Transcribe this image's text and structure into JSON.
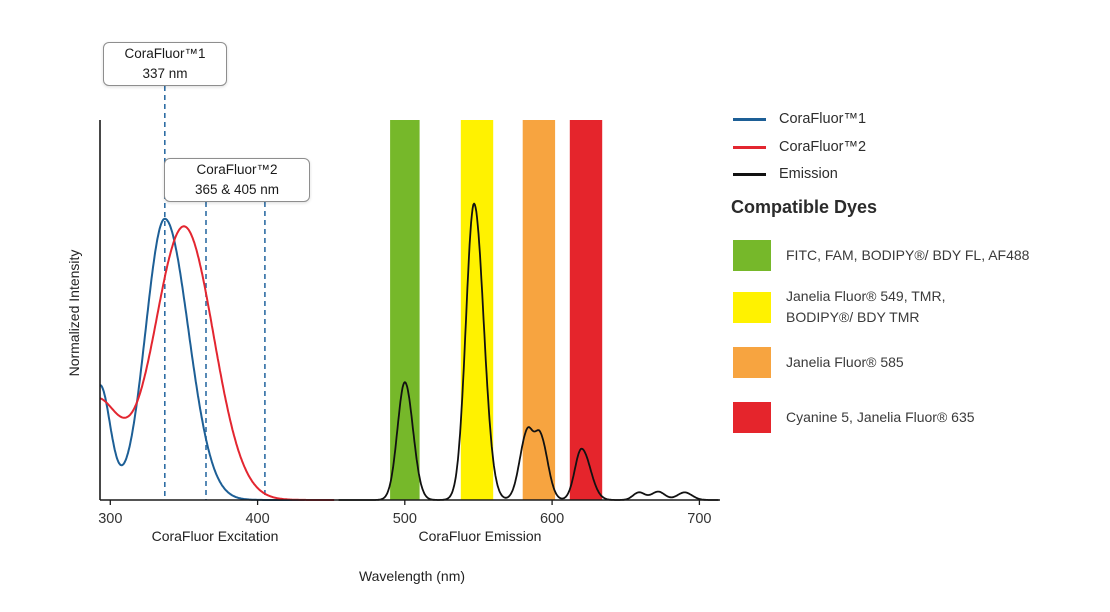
{
  "figure": {
    "callouts": [
      {
        "title": "CoraFluor™1",
        "subtitle": "337 nm"
      },
      {
        "title": "CoraFluor™2",
        "subtitle": "365 & 405 nm"
      }
    ]
  },
  "legend": {
    "items": [
      {
        "label": "CoraFluor™1",
        "color": "#1d5f96"
      },
      {
        "label": "CoraFluor™2",
        "color": "#e32630"
      },
      {
        "label": "Emission",
        "color": "#111111"
      }
    ]
  },
  "dyes": {
    "heading": "Compatible Dyes",
    "items": [
      {
        "color": "#76b82a",
        "label": "FITC, FAM, BODIPY®/ BDY FL, AF488"
      },
      {
        "color": "#fff200",
        "label": "Janelia Fluor® 549, TMR,\nBODIPY®/ BDY TMR"
      },
      {
        "color": "#f7a440",
        "label": "Janelia Fluor® 585"
      },
      {
        "color": "#e5252c",
        "label": "Cyanine 5, Janelia Fluor® 635"
      }
    ]
  },
  "chart_data": {
    "type": "line",
    "xlabel": "Wavelength (nm)",
    "ylabel": "Normalized Intensity",
    "x_ticks": [
      300,
      400,
      500,
      600,
      700
    ],
    "xlim": [
      293,
      714
    ],
    "ylim": [
      0,
      1
    ],
    "grid": false,
    "legend_position": "top-right",
    "axis_group_labels": [
      {
        "text": "CoraFluor Excitation",
        "center_nm": 371
      },
      {
        "text": "CoraFluor Emission",
        "center_nm": 551
      }
    ],
    "dashed_marker_color": "#2e6da4",
    "dashed_markers_nm": [
      337,
      365,
      405
    ],
    "bands": [
      {
        "name": "green",
        "color": "#76b82a",
        "from_nm": 490,
        "to_nm": 510,
        "dyes": "FITC, FAM, BODIPY®/ BDY FL, AF488"
      },
      {
        "name": "yellow",
        "color": "#fff200",
        "from_nm": 538,
        "to_nm": 560,
        "dyes": "Janelia Fluor® 549, TMR, BODIPY®/ BDY TMR"
      },
      {
        "name": "orange",
        "color": "#f7a440",
        "from_nm": 580,
        "to_nm": 602,
        "dyes": "Janelia Fluor® 585"
      },
      {
        "name": "red",
        "color": "#e5252c",
        "from_nm": 612,
        "to_nm": 634,
        "dyes": "Cyanine 5, Janelia Fluor® 635"
      }
    ],
    "series": [
      {
        "name": "CoraFluor™1",
        "role": "excitation",
        "color": "#1d5f96",
        "width": 2,
        "range_nm": [
          293,
          432
        ],
        "peak_nm": 337,
        "peak_intensity": 0.74,
        "gaussians": [
          {
            "mu": 337,
            "sL": 13,
            "sR": 16,
            "a": 0.74
          },
          {
            "mu": 293,
            "sL": 20,
            "sR": 7,
            "a": 0.3
          }
        ]
      },
      {
        "name": "CoraFluor™2",
        "role": "excitation",
        "color": "#e32630",
        "width": 2,
        "range_nm": [
          293,
          452
        ],
        "peak_nm": 350,
        "peak_intensity": 0.72,
        "gaussians": [
          {
            "mu": 350,
            "sL": 20,
            "sR": 20,
            "a": 0.72
          },
          {
            "mu": 290,
            "sL": 30,
            "sR": 16,
            "a": 0.26
          }
        ]
      },
      {
        "name": "Emission",
        "role": "emission",
        "color": "#111111",
        "width": 1.8,
        "range_nm": [
          455,
          713
        ],
        "peaks_nm": [
          500,
          547,
          587,
          620
        ],
        "gaussians": [
          {
            "mu": 500,
            "sL": 5,
            "sR": 5.5,
            "a": 0.31
          },
          {
            "mu": 547,
            "sL": 5.5,
            "sR": 6.5,
            "a": 0.78
          },
          {
            "mu": 583,
            "sL": 5,
            "sR": 4,
            "a": 0.175
          },
          {
            "mu": 592,
            "sL": 4,
            "sR": 5,
            "a": 0.165
          },
          {
            "mu": 620,
            "sL": 4.5,
            "sR": 6,
            "a": 0.135
          },
          {
            "mu": 659,
            "sL": 4,
            "sR": 4,
            "a": 0.02
          },
          {
            "mu": 672,
            "sL": 4.5,
            "sR": 4.5,
            "a": 0.022
          },
          {
            "mu": 690,
            "sL": 5,
            "sR": 5,
            "a": 0.02
          }
        ]
      }
    ]
  }
}
